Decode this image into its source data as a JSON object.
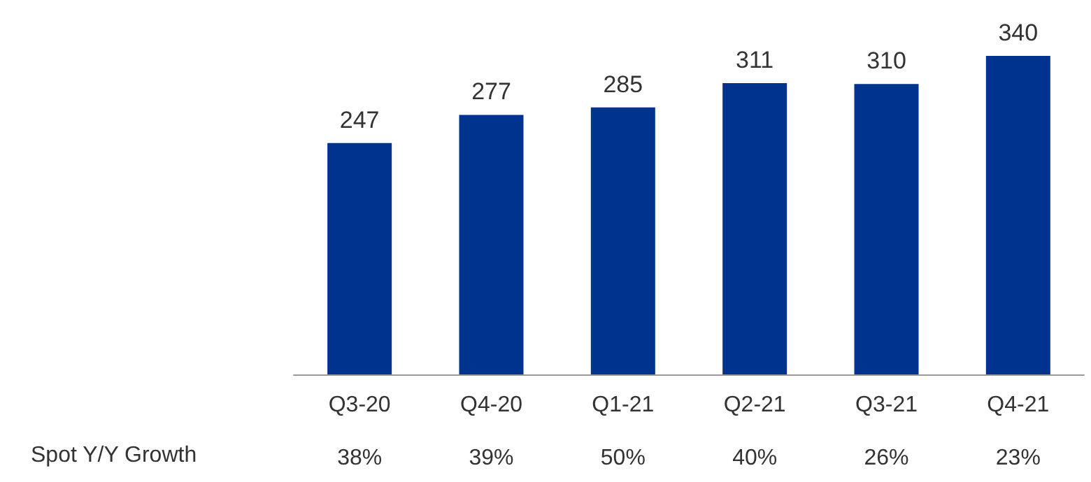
{
  "chart_data": {
    "type": "bar",
    "categories": [
      "Q3-20",
      "Q4-20",
      "Q1-21",
      "Q2-21",
      "Q3-21",
      "Q4-21"
    ],
    "values": [
      247,
      277,
      285,
      311,
      310,
      340
    ],
    "color": "#00338d",
    "data_labels": true,
    "annotations": [
      "Spot Y/Y Growth",
      "38%",
      "39%",
      "50%",
      "40%",
      "26%",
      "23%"
    ]
  }
}
